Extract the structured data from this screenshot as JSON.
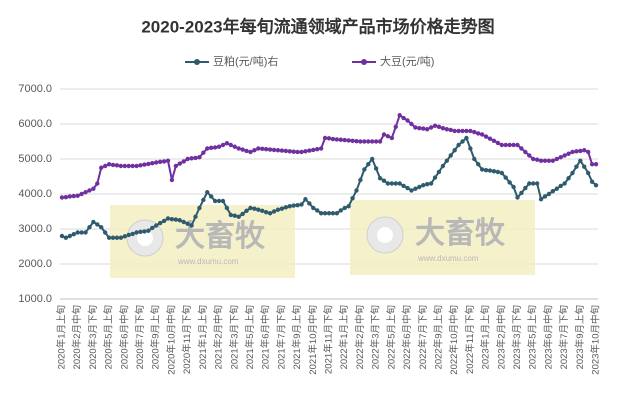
{
  "chart_data": {
    "type": "line",
    "title": "2020-2023年每旬流通领域产品市场价格走势图",
    "watermark": "大畜牧",
    "watermark_url": "www.dxumu.com",
    "categories": [
      "2020年1月上旬",
      null,
      null,
      null,
      "2020年2月中旬",
      null,
      null,
      null,
      "2020年3月下旬",
      null,
      null,
      null,
      "2020年5月上旬",
      null,
      null,
      null,
      "2020年6月中旬",
      null,
      null,
      null,
      "2020年7月下旬",
      null,
      null,
      null,
      "2020年9月上旬",
      null,
      null,
      null,
      "2020年10月中旬",
      null,
      null,
      null,
      "2020年11月下旬",
      null,
      null,
      null,
      "2021年1月上旬",
      null,
      null,
      null,
      "2021年2月中旬",
      null,
      null,
      null,
      "2021年3月下旬",
      null,
      null,
      null,
      "2021年5月上旬",
      null,
      null,
      null,
      "2021年6月中旬",
      null,
      null,
      null,
      "2021年7月下旬",
      null,
      null,
      null,
      "2021年9月上旬",
      null,
      null,
      null,
      "2021年10月中旬",
      null,
      null,
      null,
      "2021年11月下旬",
      null,
      null,
      null,
      "2022年1月上旬",
      null,
      null,
      null,
      "2022年2月中旬",
      null,
      null,
      null,
      "2022年3月下旬",
      null,
      null,
      null,
      "2022年5月上旬",
      null,
      null,
      null,
      "2022年6月中旬",
      null,
      null,
      null,
      "2022年7月下旬",
      null,
      null,
      null,
      "2022年9月上旬",
      null,
      null,
      null,
      "2022年10月中旬",
      null,
      null,
      null,
      "2022年11月下旬",
      null,
      null,
      null,
      "2023年1月上旬",
      null,
      null,
      null,
      "2023年2月中旬",
      null,
      null,
      null,
      "2023年3月下旬",
      null,
      null,
      null,
      "2023年5月上旬",
      null,
      null,
      null,
      "2023年6月中旬",
      null,
      null,
      null,
      "2023年7月下旬",
      null,
      null,
      null,
      "2023年9月上旬",
      null,
      null,
      null,
      "2023年10月中旬"
    ],
    "series": [
      {
        "name": "豆粕(元/吨)右",
        "color": "#2f5b6e",
        "values": [
          2800,
          2750,
          2800,
          2850,
          2900,
          2900,
          2900,
          3050,
          3200,
          3130,
          3050,
          2900,
          2750,
          2750,
          2750,
          2750,
          2790,
          2830,
          2860,
          2900,
          2920,
          2930,
          2950,
          3030,
          3100,
          3170,
          3230,
          3300,
          3280,
          3270,
          3250,
          3200,
          3150,
          3100,
          3350,
          3600,
          3830,
          4050,
          3930,
          3800,
          3800,
          3800,
          3600,
          3400,
          3380,
          3350,
          3430,
          3520,
          3600,
          3580,
          3550,
          3520,
          3480,
          3450,
          3500,
          3550,
          3580,
          3620,
          3650,
          3670,
          3680,
          3700,
          3850,
          3730,
          3600,
          3530,
          3450,
          3450,
          3450,
          3450,
          3450,
          3530,
          3600,
          3650,
          3880,
          4100,
          4400,
          4700,
          4850,
          5000,
          4730,
          4450,
          4380,
          4300,
          4300,
          4300,
          4300,
          4230,
          4170,
          4100,
          4150,
          4200,
          4250,
          4280,
          4300,
          4470,
          4630,
          4800,
          4950,
          5100,
          5250,
          5400,
          5500,
          5600,
          5300,
          5000,
          4850,
          4700,
          4680,
          4670,
          4650,
          4630,
          4600,
          4470,
          4330,
          4200,
          3900,
          4030,
          4170,
          4300,
          4300,
          4300,
          3850,
          3930,
          4000,
          4080,
          4150,
          4230,
          4300,
          4450,
          4600,
          4780,
          4950,
          4780,
          4600,
          4350,
          4250
        ]
      },
      {
        "name": "大豆(元/吨)",
        "color": "#7030a0",
        "values": [
          3900,
          3910,
          3930,
          3940,
          3950,
          4000,
          4050,
          4100,
          4150,
          4300,
          4750,
          4800,
          4850,
          4830,
          4820,
          4800,
          4800,
          4800,
          4800,
          4800,
          4820,
          4840,
          4860,
          4880,
          4900,
          4920,
          4930,
          4950,
          4400,
          4800,
          4870,
          4930,
          5000,
          5020,
          5030,
          5050,
          5180,
          5300,
          5320,
          5330,
          5350,
          5400,
          5450,
          5400,
          5350,
          5300,
          5270,
          5230,
          5200,
          5250,
          5300,
          5290,
          5280,
          5270,
          5260,
          5250,
          5240,
          5230,
          5220,
          5210,
          5200,
          5200,
          5220,
          5240,
          5260,
          5280,
          5300,
          5600,
          5590,
          5570,
          5560,
          5550,
          5540,
          5530,
          5520,
          5510,
          5500,
          5500,
          5500,
          5500,
          5500,
          5500,
          5700,
          5650,
          5600,
          5920,
          6250,
          6170,
          6100,
          6000,
          5900,
          5880,
          5870,
          5850,
          5900,
          5950,
          5920,
          5880,
          5850,
          5830,
          5800,
          5800,
          5800,
          5800,
          5800,
          5770,
          5730,
          5700,
          5640,
          5580,
          5520,
          5460,
          5400,
          5400,
          5400,
          5400,
          5400,
          5300,
          5200,
          5100,
          5000,
          4980,
          4950,
          4950,
          4950,
          4950,
          5000,
          5050,
          5100,
          5150,
          5200,
          5220,
          5230,
          5250,
          5200,
          4850,
          4850
        ]
      }
    ],
    "ylim": [
      1000,
      7000
    ],
    "yticks": [
      {
        "value": 1000,
        "label": "1000.0"
      },
      {
        "value": 2000,
        "label": "2000.0"
      },
      {
        "value": 3000,
        "label": "3000.0"
      },
      {
        "value": 4000,
        "label": "4000.0"
      },
      {
        "value": 5000,
        "label": "5000.0"
      },
      {
        "value": 6000,
        "label": "6000.0"
      },
      {
        "value": 7000,
        "label": "7000.0"
      }
    ],
    "grid": true
  }
}
